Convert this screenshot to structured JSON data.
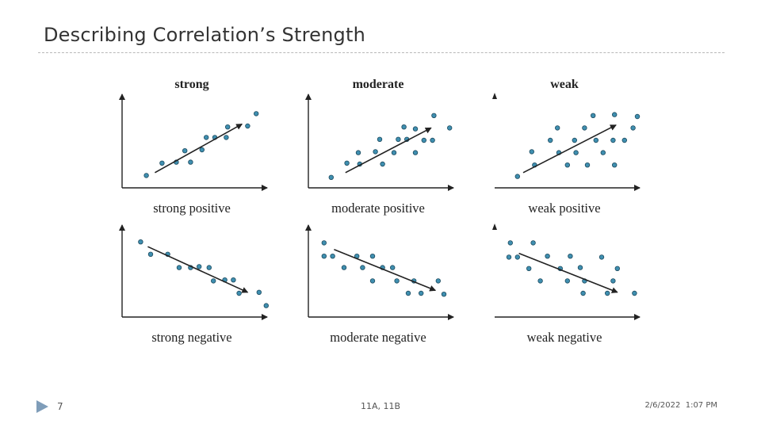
{
  "slide": {
    "title": "Describing Correlation’s Strength",
    "footer": {
      "page_number": "7",
      "center_text": "11A, 11B",
      "date": "2/6/2022  1:07 PM"
    },
    "colors": {
      "point_fill": "#3f8fb0",
      "point_stroke": "#1d4a5e",
      "axis": "#222222",
      "footer_marker": "#7f9db9"
    }
  },
  "chart_data": [
    {
      "type": "scatter",
      "title": "strong",
      "xlabel": "strong positive",
      "y_axis_line": true,
      "xlim": [
        0,
        10
      ],
      "ylim": [
        0,
        10
      ],
      "points": [
        [
          1.7,
          1.3
        ],
        [
          2.8,
          2.6
        ],
        [
          3.8,
          2.7
        ],
        [
          4.4,
          3.9
        ],
        [
          4.8,
          2.7
        ],
        [
          5.6,
          4.0
        ],
        [
          5.9,
          5.3
        ],
        [
          6.5,
          5.3
        ],
        [
          7.4,
          6.4
        ],
        [
          7.3,
          5.3
        ],
        [
          8.8,
          6.5
        ],
        [
          9.4,
          7.8
        ]
      ],
      "trend_arrow": [
        [
          2.3,
          1.6
        ],
        [
          8.4,
          6.7
        ]
      ]
    },
    {
      "type": "scatter",
      "title": "moderate",
      "xlabel": "moderate positive",
      "y_axis_line": true,
      "xlim": [
        0,
        10
      ],
      "ylim": [
        0,
        10
      ],
      "points": [
        [
          1.6,
          1.1
        ],
        [
          2.7,
          2.6
        ],
        [
          3.5,
          3.7
        ],
        [
          3.6,
          2.5
        ],
        [
          4.7,
          3.8
        ],
        [
          5.0,
          5.1
        ],
        [
          5.2,
          2.5
        ],
        [
          6.0,
          3.7
        ],
        [
          6.3,
          5.1
        ],
        [
          6.7,
          6.4
        ],
        [
          6.9,
          5.1
        ],
        [
          7.5,
          3.7
        ],
        [
          7.5,
          6.2
        ],
        [
          8.1,
          5.0
        ],
        [
          8.7,
          5.0
        ],
        [
          8.8,
          7.6
        ],
        [
          9.9,
          6.3
        ]
      ],
      "trend_arrow": [
        [
          2.6,
          1.6
        ],
        [
          8.6,
          6.3
        ]
      ]
    },
    {
      "type": "scatter",
      "title": "weak",
      "xlabel": "weak positive",
      "y_axis_line": false,
      "xlim": [
        0,
        10
      ],
      "ylim": [
        0,
        10
      ],
      "points": [
        [
          1.6,
          1.2
        ],
        [
          2.6,
          3.8
        ],
        [
          2.8,
          2.4
        ],
        [
          3.9,
          5.0
        ],
        [
          4.4,
          6.3
        ],
        [
          4.5,
          3.7
        ],
        [
          5.1,
          2.4
        ],
        [
          5.6,
          5.0
        ],
        [
          5.7,
          3.7
        ],
        [
          6.3,
          6.3
        ],
        [
          6.5,
          2.4
        ],
        [
          6.9,
          7.6
        ],
        [
          7.1,
          5.0
        ],
        [
          7.6,
          3.7
        ],
        [
          8.3,
          5.0
        ],
        [
          8.4,
          7.7
        ],
        [
          8.4,
          2.4
        ],
        [
          9.1,
          5.0
        ],
        [
          9.7,
          6.3
        ],
        [
          10.0,
          7.5
        ]
      ],
      "trend_arrow": [
        [
          2.0,
          1.6
        ],
        [
          8.5,
          6.6
        ]
      ]
    },
    {
      "type": "scatter",
      "title": "",
      "xlabel": "strong negative",
      "y_axis_line": true,
      "xlim": [
        0,
        10
      ],
      "ylim": [
        0,
        10
      ],
      "points": [
        [
          1.3,
          7.9
        ],
        [
          2.0,
          6.6
        ],
        [
          3.2,
          6.6
        ],
        [
          4.0,
          5.2
        ],
        [
          4.8,
          5.2
        ],
        [
          5.4,
          5.3
        ],
        [
          6.1,
          5.2
        ],
        [
          6.4,
          3.8
        ],
        [
          7.2,
          3.9
        ],
        [
          7.8,
          3.9
        ],
        [
          8.2,
          2.5
        ],
        [
          9.6,
          2.6
        ],
        [
          10.1,
          1.2
        ]
      ],
      "trend_arrow": [
        [
          1.8,
          7.4
        ],
        [
          8.8,
          2.6
        ]
      ]
    },
    {
      "type": "scatter",
      "title": "",
      "xlabel": "moderate negative",
      "y_axis_line": true,
      "xlim": [
        0,
        10
      ],
      "ylim": [
        0,
        10
      ],
      "points": [
        [
          1.1,
          7.8
        ],
        [
          1.1,
          6.4
        ],
        [
          1.7,
          6.4
        ],
        [
          2.5,
          5.2
        ],
        [
          3.4,
          6.4
        ],
        [
          3.8,
          5.2
        ],
        [
          4.5,
          6.4
        ],
        [
          4.5,
          3.8
        ],
        [
          5.2,
          5.2
        ],
        [
          5.9,
          5.2
        ],
        [
          6.2,
          3.8
        ],
        [
          7.0,
          2.5
        ],
        [
          7.4,
          3.8
        ],
        [
          7.9,
          2.5
        ],
        [
          9.1,
          3.8
        ],
        [
          9.5,
          2.4
        ]
      ],
      "trend_arrow": [
        [
          1.8,
          7.1
        ],
        [
          8.9,
          2.8
        ]
      ]
    },
    {
      "type": "scatter",
      "title": "",
      "xlabel": "weak negative",
      "y_axis_line": false,
      "xlim": [
        0,
        10
      ],
      "ylim": [
        0,
        10
      ],
      "points": [
        [
          1.1,
          7.8
        ],
        [
          1.0,
          6.3
        ],
        [
          1.6,
          6.3
        ],
        [
          2.4,
          5.1
        ],
        [
          2.7,
          7.8
        ],
        [
          3.2,
          3.8
        ],
        [
          3.7,
          6.4
        ],
        [
          4.6,
          5.1
        ],
        [
          5.1,
          3.8
        ],
        [
          5.3,
          6.4
        ],
        [
          6.0,
          5.2
        ],
        [
          6.2,
          2.5
        ],
        [
          6.3,
          3.8
        ],
        [
          7.5,
          6.3
        ],
        [
          7.9,
          2.5
        ],
        [
          8.3,
          3.8
        ],
        [
          8.6,
          5.1
        ],
        [
          9.8,
          2.5
        ]
      ],
      "trend_arrow": [
        [
          1.7,
          6.7
        ],
        [
          8.6,
          2.6
        ]
      ]
    }
  ]
}
